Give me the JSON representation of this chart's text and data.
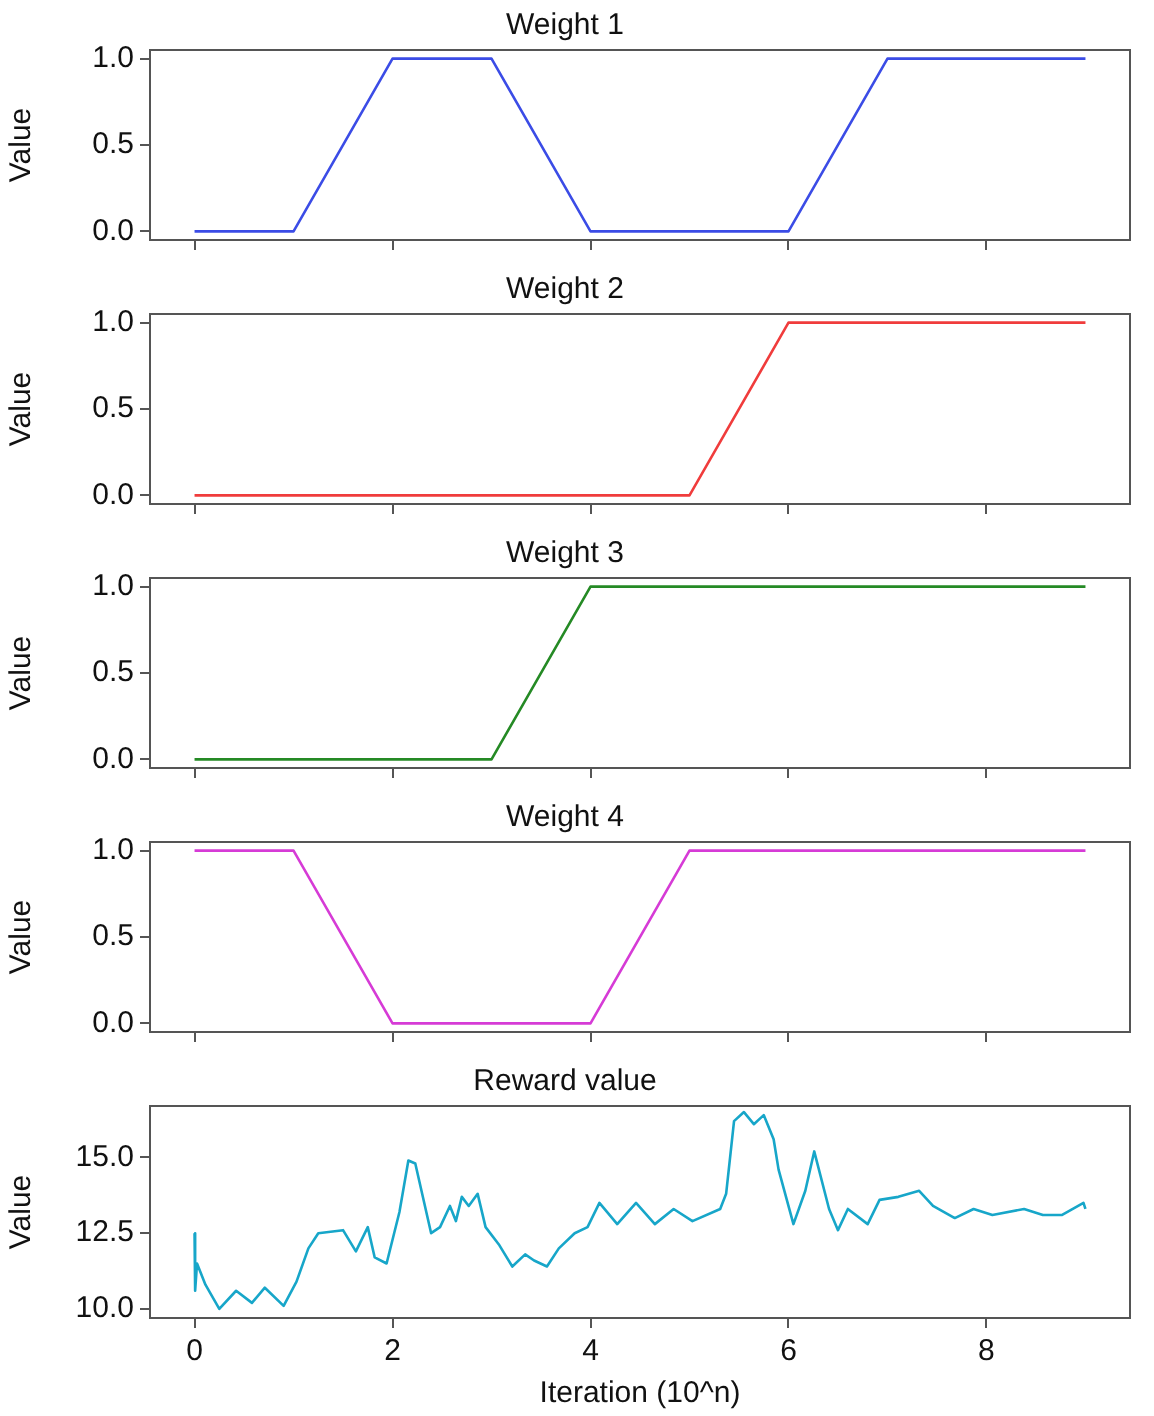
{
  "chart_data": [
    {
      "type": "line",
      "title": "Weight 1",
      "ylabel": "Value",
      "x": [
        0,
        1,
        2,
        3,
        4,
        5,
        6,
        7,
        8,
        9
      ],
      "series": [
        {
          "color": "#3b4ce6",
          "values": [
            0,
            0,
            1,
            1,
            0,
            0,
            0,
            1,
            1,
            1
          ]
        }
      ],
      "xlim": [
        -0.45,
        9.45
      ],
      "xticks": [
        0,
        2,
        4,
        6,
        8
      ],
      "ylim": [
        -0.05,
        1.05
      ],
      "yticks": [
        {
          "value": 0,
          "label": "0.0"
        },
        {
          "value": 0.5,
          "label": "0.5"
        },
        {
          "value": 1,
          "label": "1.0"
        }
      ],
      "tick_labels": "y",
      "grid": false,
      "marker": "none"
    },
    {
      "type": "line",
      "title": "Weight 2",
      "ylabel": "Value",
      "x": [
        0,
        1,
        2,
        3,
        4,
        5,
        6,
        7,
        8,
        9
      ],
      "series": [
        {
          "color": "#f03c3c",
          "values": [
            0,
            0,
            0,
            0,
            0,
            0,
            1,
            1,
            1,
            1
          ]
        }
      ],
      "xlim": [
        -0.45,
        9.45
      ],
      "xticks": [
        0,
        2,
        4,
        6,
        8
      ],
      "ylim": [
        -0.05,
        1.05
      ],
      "yticks": [
        {
          "value": 0,
          "label": "0.0"
        },
        {
          "value": 0.5,
          "label": "0.5"
        },
        {
          "value": 1,
          "label": "1.0"
        }
      ],
      "tick_labels": "y",
      "grid": false,
      "marker": "none"
    },
    {
      "type": "line",
      "title": "Weight 3",
      "ylabel": "Value",
      "x": [
        0,
        1,
        2,
        3,
        4,
        5,
        6,
        7,
        8,
        9
      ],
      "series": [
        {
          "color": "#258a25",
          "values": [
            0,
            0,
            0,
            0,
            1,
            1,
            1,
            1,
            1,
            1
          ]
        }
      ],
      "xlim": [
        -0.45,
        9.45
      ],
      "xticks": [
        0,
        2,
        4,
        6,
        8
      ],
      "ylim": [
        -0.05,
        1.05
      ],
      "yticks": [
        {
          "value": 0,
          "label": "0.0"
        },
        {
          "value": 0.5,
          "label": "0.5"
        },
        {
          "value": 1,
          "label": "1.0"
        }
      ],
      "tick_labels": "y",
      "grid": false,
      "marker": "none"
    },
    {
      "type": "line",
      "title": "Weight 4",
      "ylabel": "Value",
      "x": [
        0,
        1,
        2,
        3,
        4,
        5,
        6,
        7,
        8,
        9
      ],
      "series": [
        {
          "color": "#d63bd6",
          "values": [
            1,
            1,
            0,
            0,
            0,
            1,
            1,
            1,
            1,
            1
          ]
        }
      ],
      "xlim": [
        -0.45,
        9.45
      ],
      "xticks": [
        0,
        2,
        4,
        6,
        8
      ],
      "ylim": [
        -0.05,
        1.05
      ],
      "yticks": [
        {
          "value": 0,
          "label": "0.0"
        },
        {
          "value": 0.5,
          "label": "0.5"
        },
        {
          "value": 1,
          "label": "1.0"
        }
      ],
      "tick_labels": "y",
      "grid": false,
      "marker": "none"
    },
    {
      "type": "line",
      "title": "Reward value",
      "ylabel": "Value",
      "xlabel": "Iteration (10^n)",
      "x": [
        0,
        0.006,
        0.025,
        0.11,
        0.25,
        0.42,
        0.58,
        0.71,
        0.9,
        1.03,
        1.15,
        1.25,
        1.5,
        1.63,
        1.75,
        1.82,
        1.94,
        2.07,
        2.16,
        2.23,
        2.39,
        2.48,
        2.58,
        2.64,
        2.7,
        2.77,
        2.86,
        2.94,
        3.08,
        3.21,
        3.34,
        3.43,
        3.56,
        3.68,
        3.84,
        3.97,
        4.09,
        4.27,
        4.46,
        4.65,
        4.84,
        5.03,
        5.31,
        5.37,
        5.45,
        5.55,
        5.65,
        5.75,
        5.85,
        5.9,
        6.05,
        6.17,
        6.26,
        6.41,
        6.5,
        6.6,
        6.8,
        6.92,
        7.11,
        7.32,
        7.46,
        7.68,
        7.87,
        8.06,
        8.38,
        8.57,
        8.76,
        8.98,
        9.0
      ],
      "series": [
        {
          "color": "#17a6c9",
          "values": [
            12.5,
            10.6,
            11.5,
            10.8,
            10.0,
            10.6,
            10.2,
            10.7,
            10.1,
            10.9,
            12.0,
            12.5,
            12.6,
            11.9,
            12.7,
            11.7,
            11.5,
            13.2,
            14.9,
            14.8,
            12.5,
            12.7,
            13.4,
            12.9,
            13.7,
            13.4,
            13.8,
            12.7,
            12.1,
            11.4,
            11.8,
            11.6,
            11.4,
            12.0,
            12.5,
            12.7,
            13.5,
            12.8,
            13.5,
            12.8,
            13.3,
            12.9,
            13.3,
            13.8,
            16.2,
            16.5,
            16.1,
            16.4,
            15.6,
            14.6,
            12.8,
            13.9,
            15.2,
            13.3,
            12.6,
            13.3,
            12.8,
            13.6,
            13.7,
            13.9,
            13.4,
            13.0,
            13.3,
            13.1,
            13.3,
            13.1,
            13.1,
            13.5,
            13.3
          ]
        }
      ],
      "xlim": [
        -0.45,
        9.45
      ],
      "xticks": [
        0,
        2,
        4,
        6,
        8
      ],
      "ylim": [
        9.7,
        16.7
      ],
      "yticks": [
        {
          "value": 10,
          "label": "10.0"
        },
        {
          "value": 12.5,
          "label": "12.5"
        },
        {
          "value": 15,
          "label": "15.0"
        }
      ],
      "grid": false,
      "marker": "none"
    }
  ]
}
